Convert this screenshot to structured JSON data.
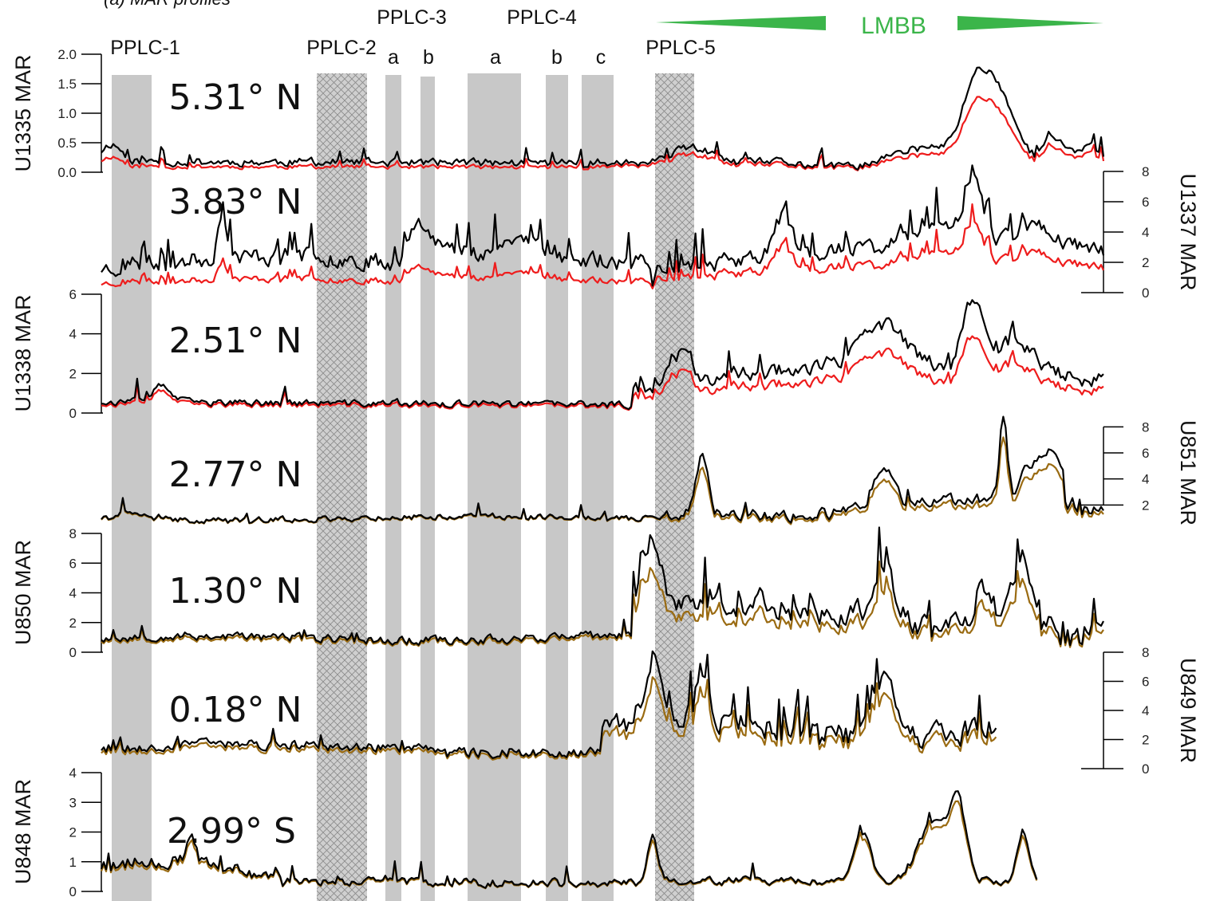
{
  "chart_data": {
    "type": "line",
    "title": "(a) MAR profiles",
    "colors": {
      "black_series": "#000000",
      "red_series": "#ee1c1c",
      "brown_series": "#9a6b12",
      "gray_band": "#c8c8c8",
      "hatched_band": "#cfcfcf",
      "lmbb": "#3bb54a"
    },
    "event_label": "LMBB",
    "event_bands": [
      {
        "label": "PPLC-1",
        "sub": "",
        "style": "solid"
      },
      {
        "label": "PPLC-2",
        "sub": "",
        "style": "hatched"
      },
      {
        "label": "PPLC-3",
        "sub": "a",
        "style": "solid"
      },
      {
        "label": "",
        "sub": "b",
        "style": "solid"
      },
      {
        "label": "PPLC-4",
        "sub": "a",
        "style": "solid"
      },
      {
        "label": "",
        "sub": "b",
        "style": "solid"
      },
      {
        "label": "",
        "sub": "c",
        "style": "solid"
      },
      {
        "label": "PPLC-5",
        "sub": "",
        "style": "hatched"
      }
    ],
    "panels": [
      {
        "site": "U1335",
        "ylabel": "U1335 MAR",
        "latitude": "5.31° N",
        "axis_side": "left",
        "ylim": [
          0,
          2.0
        ],
        "ticks": [
          "0.0",
          "0.5",
          "1.0",
          "1.5",
          "2.0"
        ],
        "series": [
          "black",
          "red"
        ]
      },
      {
        "site": "U1337",
        "ylabel": "U1337 MAR",
        "latitude": "3.83° N",
        "axis_side": "right",
        "ylim": [
          0,
          8
        ],
        "ticks": [
          "0",
          "2",
          "4",
          "6",
          "8"
        ],
        "series": [
          "black",
          "red"
        ]
      },
      {
        "site": "U1338",
        "ylabel": "U1338 MAR",
        "latitude": "2.51° N",
        "axis_side": "left",
        "ylim": [
          0,
          6
        ],
        "ticks": [
          "0",
          "2",
          "4",
          "6"
        ],
        "series": [
          "black",
          "red"
        ]
      },
      {
        "site": "U851",
        "ylabel": "U851 MAR",
        "latitude": "2.77° N",
        "axis_side": "right",
        "ylim": [
          0,
          9
        ],
        "ticks": [
          "2",
          "4",
          "6",
          "8"
        ],
        "series": [
          "black",
          "brown"
        ]
      },
      {
        "site": "U850",
        "ylabel": "U850 MAR",
        "latitude": "1.30° N",
        "axis_side": "left",
        "ylim": [
          0,
          8
        ],
        "ticks": [
          "0",
          "2",
          "4",
          "6",
          "8"
        ],
        "series": [
          "black",
          "brown"
        ]
      },
      {
        "site": "U849",
        "ylabel": "U849 MAR",
        "latitude": "0.18° N",
        "axis_side": "right",
        "ylim": [
          0,
          8
        ],
        "ticks": [
          "0",
          "2",
          "4",
          "6",
          "8"
        ],
        "series": [
          "black",
          "brown"
        ]
      },
      {
        "site": "U848",
        "ylabel": "U848 MAR",
        "latitude": "2.99° S",
        "axis_side": "left",
        "ylim": [
          0,
          4
        ],
        "ticks": [
          "0",
          "1",
          "2",
          "3",
          "4"
        ],
        "series": [
          "black",
          "brown"
        ]
      }
    ]
  }
}
